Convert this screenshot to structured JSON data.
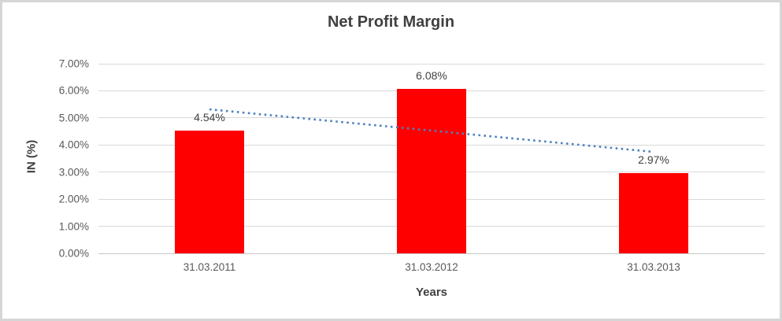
{
  "window": {
    "background_color": "#FFFFFF",
    "border_color": "#D6D6D6"
  },
  "chart_data": {
    "type": "bar",
    "title": "Net Profit Margin",
    "categories": [
      "31.03.2011",
      "31.03.2012",
      "31.03.2013"
    ],
    "values": [
      4.54,
      6.08,
      2.97
    ],
    "data_labels": [
      "4.54%",
      "6.08%",
      "2.97%"
    ],
    "xlabel": "Years",
    "ylabel": "IN (%)",
    "ylim": [
      0,
      7
    ],
    "y_ticks": [
      0,
      1,
      2,
      3,
      4,
      5,
      6,
      7
    ],
    "y_tick_labels": [
      "0.00%",
      "1.00%",
      "2.00%",
      "3.00%",
      "4.00%",
      "5.00%",
      "6.00%",
      "7.00%"
    ],
    "grid": true,
    "legend": "none",
    "bar_color": "#FF0000",
    "gridline_color": "#D9D9D9",
    "axis_line_color": "#C6C6C6",
    "tick_text_color": "#595959",
    "title_text_color": "#404040",
    "trendline": {
      "type": "linear",
      "style": "dotted",
      "color": "#4E81BD"
    }
  }
}
